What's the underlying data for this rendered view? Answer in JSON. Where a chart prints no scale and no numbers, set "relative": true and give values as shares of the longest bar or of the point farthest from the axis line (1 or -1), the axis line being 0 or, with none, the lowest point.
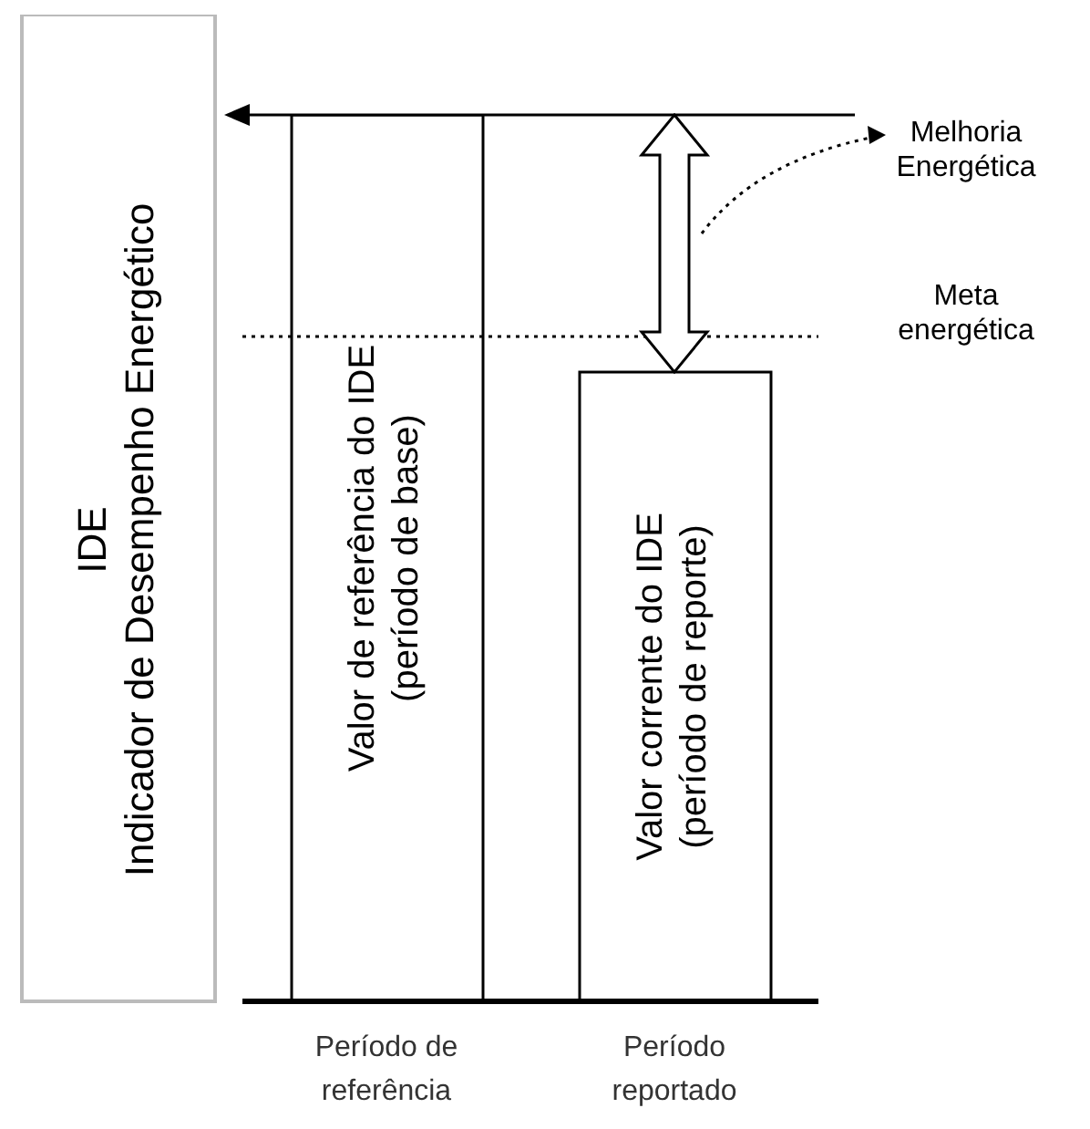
{
  "chart_data": {
    "type": "bar",
    "relative": true,
    "ylabel": "IDE\nIndicador de Desempenho Energético",
    "categories": [
      "Período de\nreferência",
      "Período\nreportado"
    ],
    "values": [
      1,
      0.71
    ],
    "color": "#ffffff",
    "ref_lines": [
      {
        "axis": "y",
        "value": 0.75,
        "label": "Meta\nenergética",
        "line_style": "dotted"
      }
    ],
    "annotations": [
      "Valor de referência do IDE\n(período de base)",
      "Valor corrente do IDE\n(período de reporte)",
      "Melhoria\nEnergética"
    ]
  }
}
